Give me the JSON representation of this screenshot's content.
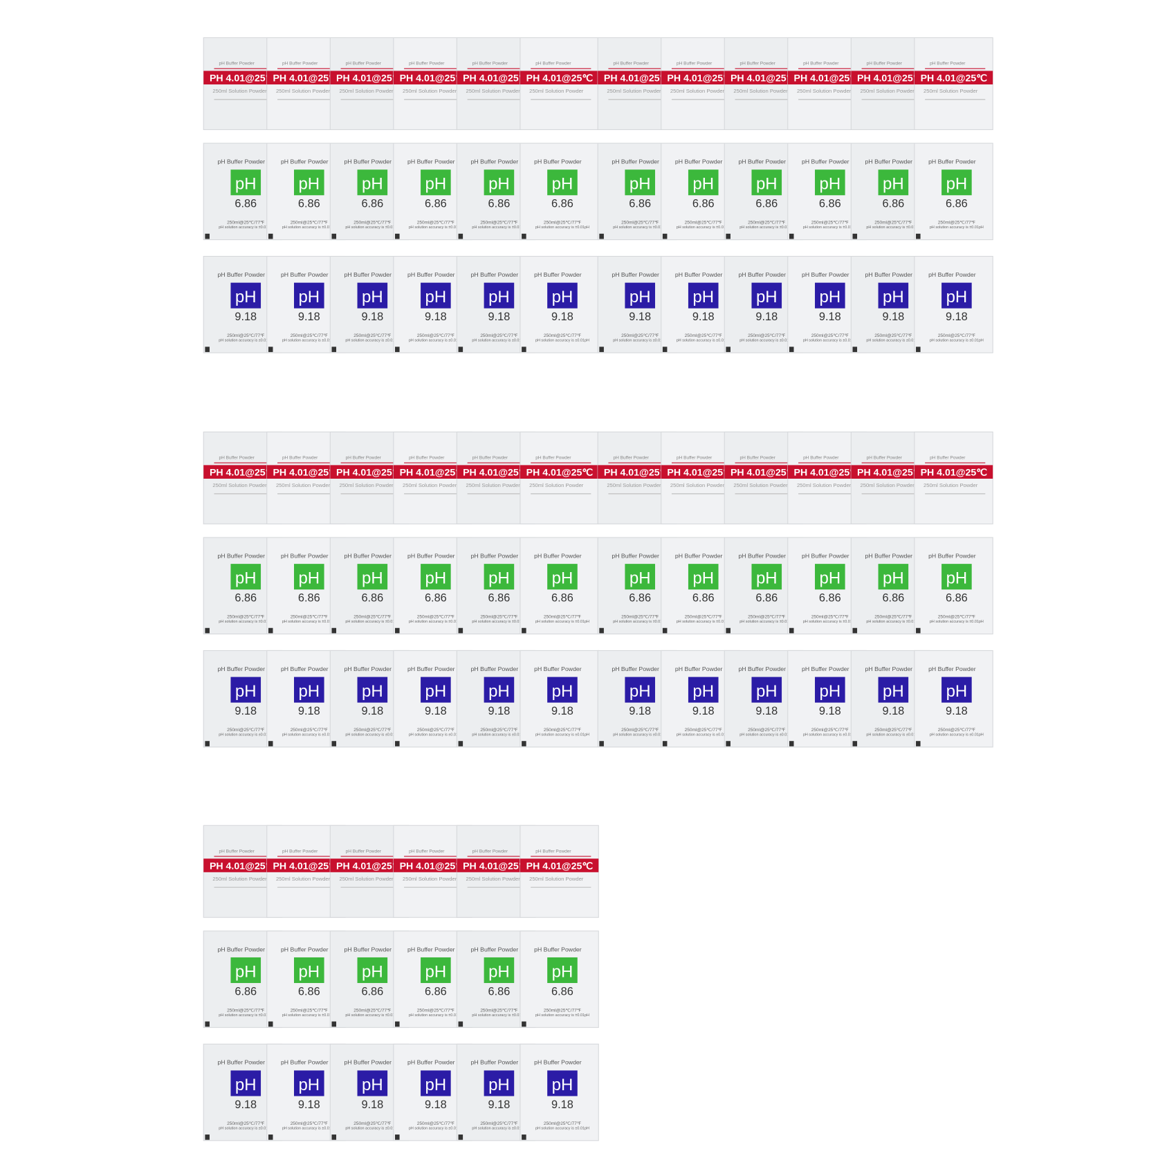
{
  "packets": [
    {
      "top": "pH Buffer Powder",
      "band": "PH 4.01@25℃",
      "sub": "250ml Solution Powder"
    },
    {
      "top": "pH Buffer Powder",
      "badge": "pH",
      "value": "6.86",
      "note": "250ml@25℃/77℉",
      "accuracy": "pH solution accuracy is ±0.01pH"
    },
    {
      "top": "pH Buffer Powder",
      "badge": "pH",
      "value": "9.18",
      "note": "250ml@25℃/77℉",
      "accuracy": "pH solution accuracy is ±0.01pH"
    }
  ]
}
